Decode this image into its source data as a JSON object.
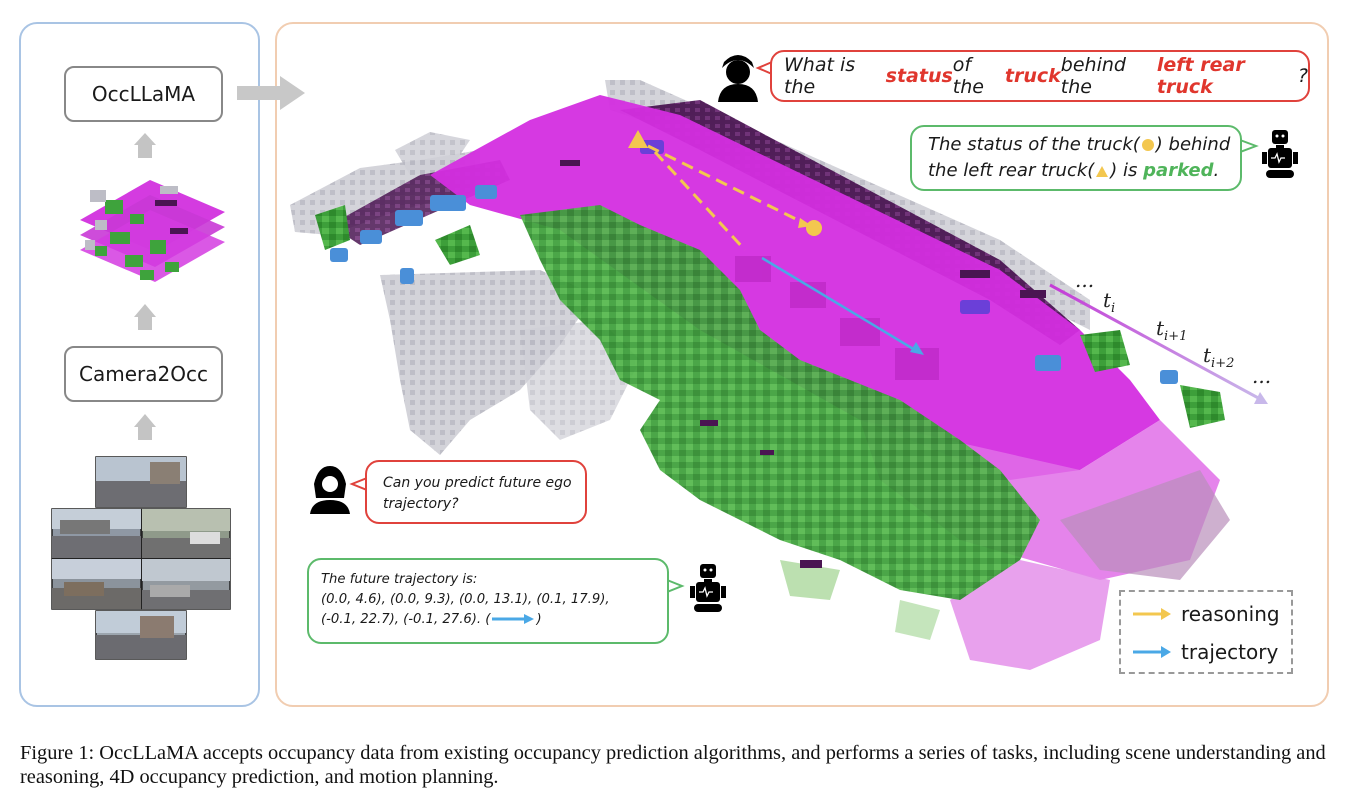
{
  "pipeline": {
    "model_label": "OccLLaMA",
    "input_label": "Camera2Occ"
  },
  "dialog": {
    "question1": {
      "prefix": "What is the ",
      "h1": "status",
      "mid1": " of the ",
      "h2": "truck",
      "mid2": " behind the ",
      "h3": "left rear truck",
      "suffix": "?"
    },
    "answer1": {
      "line1_a": "The status of the truck(",
      "line1_b": ") behind",
      "line2_a": "the left rear truck(",
      "line2_b": ") is ",
      "status": "parked",
      "line2_end": "."
    },
    "question2": {
      "line1": "Can you predict future ego",
      "line2": "trajectory?"
    },
    "answer2": {
      "line1": "The future trajectory is:",
      "line2": "(0.0, 4.6), (0.0, 9.3), (0.0, 13.1), (0.1, 17.9),",
      "line3_a": "(-0.1, 22.7), (-0.1, 27.6). (",
      "line3_b": ")"
    }
  },
  "timeline": {
    "ellipsis_start": "...",
    "t0": "t",
    "t0_sub": "i",
    "t1": "t",
    "t1_sub": "i+1",
    "t2": "t",
    "t2_sub": "i+2",
    "ellipsis_end": "..."
  },
  "legend": {
    "reasoning": "reasoning",
    "trajectory": "trajectory",
    "reasoning_color": "#f3c74f",
    "trajectory_color": "#4aa8e6"
  },
  "colors": {
    "road": "#d42ee0",
    "vegetation": "#3ea33c",
    "building": "#c8c8d0",
    "dark_occupancy": "#4a1552",
    "vehicle": "#4a8fd8"
  },
  "caption": {
    "text": "Figure 1: OccLLaMA accepts occupancy data from existing occupancy prediction algorithms, and performs a series of tasks, including scene understanding and reasoning, 4D occupancy prediction, and motion planning."
  }
}
